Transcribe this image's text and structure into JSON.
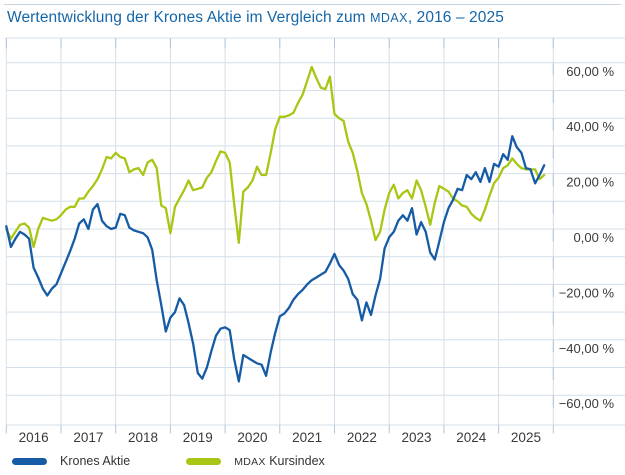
{
  "title": {
    "prefix": "Wertentwicklung der Krones Aktie im Vergleich zum ",
    "mdax": "MDAX",
    "suffix": ", 2016 – 2025"
  },
  "legend": {
    "items": [
      {
        "label": "Krones Aktie",
        "color": "#165ba5"
      },
      {
        "label_mdax": "MDAX",
        "label_rest": " Kursindex",
        "color": "#a8c613"
      }
    ]
  },
  "chart_data": {
    "type": "line",
    "title": "Wertentwicklung der Krones Aktie im Vergleich zum MDAX, 2016 – 2025",
    "x_tick_labels": [
      "2016",
      "2017",
      "2018",
      "2019",
      "2020",
      "2021",
      "2022",
      "2023",
      "2024",
      "2025"
    ],
    "y_tick_labels": [
      {
        "value": 60,
        "label": "60,00 %"
      },
      {
        "value": 40,
        "label": "40,00 %"
      },
      {
        "value": 20,
        "label": "20,00 %"
      },
      {
        "value": 0,
        "label": "0,00 %"
      },
      {
        "value": -20,
        "label": "−20,00 %"
      },
      {
        "value": -40,
        "label": "−40,00 %"
      },
      {
        "value": -60,
        "label": "−60,00 %"
      }
    ],
    "y_gridline_values": [
      60,
      50,
      40,
      30,
      20,
      10,
      0,
      -10,
      -20,
      -30,
      -40,
      -50,
      -60
    ],
    "ylim": [
      -70,
      69
    ],
    "unit": "%",
    "frequency": "monthly",
    "x_range_years": [
      2016,
      2025.85
    ],
    "grid": true,
    "legend_position": "bottom",
    "series": [
      {
        "name": "Krones Aktie",
        "color": "#165ba5",
        "values": [
          1,
          -6.5,
          -3.5,
          -1,
          -2,
          -3.5,
          -14,
          -17.5,
          -21.5,
          -24,
          -21.5,
          -20,
          -16,
          -12,
          -8,
          -3.5,
          2,
          3.5,
          0,
          7,
          9,
          3,
          1,
          0,
          0.5,
          5.5,
          5,
          0.5,
          -0.5,
          -1,
          -1.5,
          -3,
          -7.5,
          -18.5,
          -27.5,
          -37,
          -32,
          -30,
          -25,
          -27.5,
          -34,
          -41.5,
          -52,
          -54,
          -50,
          -44,
          -38.5,
          -36,
          -35.5,
          -36.5,
          -47,
          -55,
          -45.5,
          -46.5,
          -47.5,
          -48.5,
          -49,
          -53,
          -44.5,
          -37.5,
          -31.5,
          -30.5,
          -28.5,
          -25.5,
          -23.5,
          -22,
          -20,
          -18.5,
          -17.5,
          -16.5,
          -15.5,
          -12.5,
          -9,
          -13,
          -15,
          -18,
          -23.5,
          -25.5,
          -33,
          -26.5,
          -31,
          -24,
          -18,
          -7,
          -3,
          -1,
          3,
          5,
          3,
          7.5,
          -2,
          2.5,
          -1,
          -8.5,
          -11,
          -4.5,
          2.5,
          7.5,
          10.5,
          14.5,
          14,
          19.5,
          18,
          20.5,
          17,
          22,
          17,
          23.5,
          22.5,
          27,
          25,
          33.5,
          29.5,
          27.5,
          22,
          21.5,
          16.5,
          19.5,
          23
        ]
      },
      {
        "name": "MDAX Kursindex",
        "color": "#a8c613",
        "values": [
          0,
          -3.5,
          -1,
          1.5,
          2,
          0.5,
          -6.5,
          0,
          4,
          3.5,
          3,
          3.5,
          5,
          7,
          8,
          8,
          11,
          11,
          13.5,
          15.5,
          18,
          21.5,
          26,
          25.5,
          27.5,
          26,
          25.5,
          20.5,
          21.5,
          22,
          19.5,
          24,
          25,
          22,
          8.5,
          7.5,
          -1.5,
          8,
          11,
          14,
          17.5,
          14,
          14.5,
          15,
          18.5,
          20.5,
          24.5,
          28,
          27.5,
          24,
          9,
          -5,
          13.5,
          15,
          17.5,
          22.5,
          19.5,
          19.5,
          27.5,
          36,
          40.5,
          40.5,
          41,
          42,
          45.5,
          48.5,
          53.5,
          58.5,
          54.5,
          51,
          50.5,
          55,
          41.5,
          40,
          39,
          31.5,
          27.5,
          21,
          13,
          9,
          3,
          -4,
          -1,
          7,
          13,
          16,
          11,
          13,
          14,
          11,
          17.5,
          14,
          8,
          1.5,
          9.5,
          15.5,
          14.5,
          13.5,
          11,
          10,
          8.5,
          8,
          5.5,
          4,
          3,
          7,
          12,
          16.5,
          18.5,
          22,
          23,
          25.5,
          23.5,
          22,
          21.5,
          21.5,
          21.5,
          18,
          19.5
        ]
      }
    ],
    "colors": {
      "gridline": "#d4dfe9",
      "tick": "#b2c4d6",
      "axis_text": "#3a3a3a",
      "title_text": "#1566a8",
      "page_rule": "#c9d4de"
    }
  }
}
